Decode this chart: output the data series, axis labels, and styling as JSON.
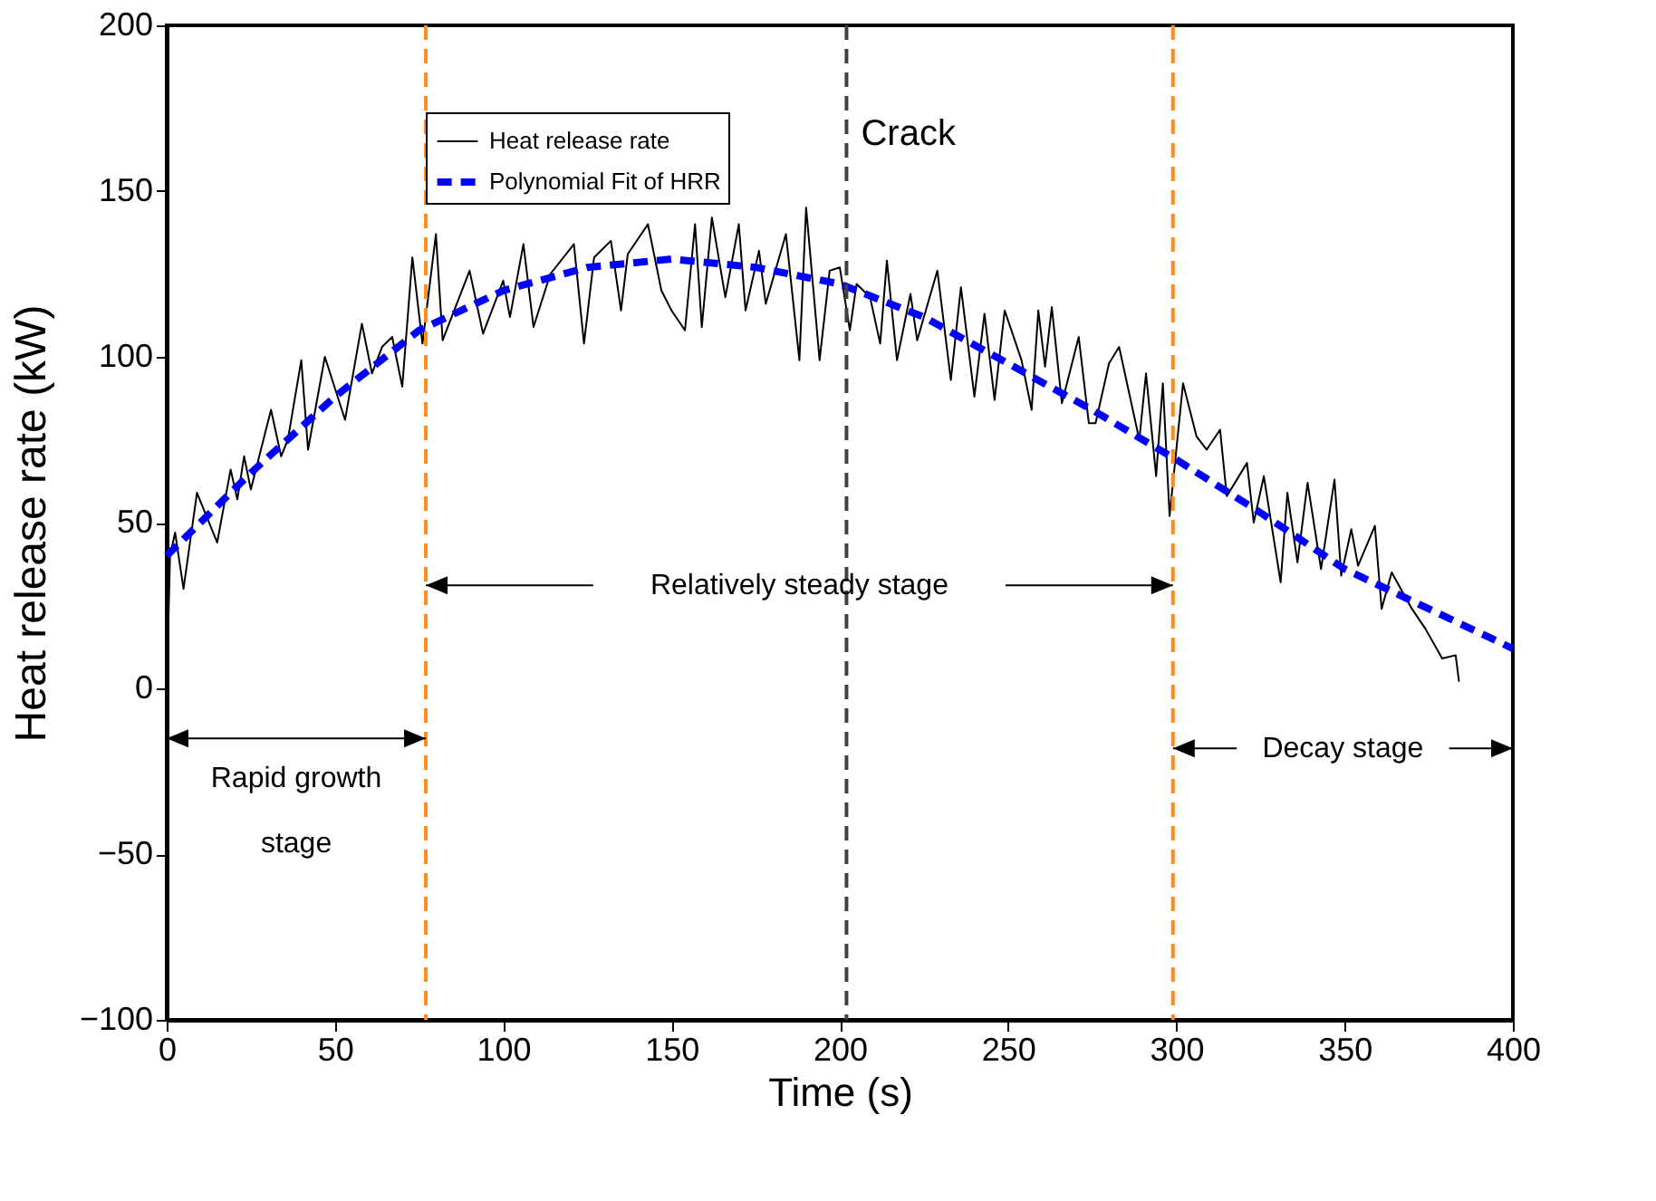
{
  "chart_data": {
    "type": "line",
    "xlabel": "Time (s)",
    "ylabel": "Heat release rate (kW)",
    "xlim": [
      0,
      400
    ],
    "xticks": [
      0,
      50,
      100,
      150,
      200,
      250,
      300,
      350,
      400
    ],
    "ylim": [
      -100,
      200
    ],
    "yticks": [
      -100,
      -50,
      0,
      50,
      100,
      150,
      200
    ],
    "grid": false,
    "legend": "top left",
    "marker": "none",
    "series": [
      {
        "name": "Heat release rate",
        "color": "#000000",
        "line_style": "solid",
        "x": [
          0,
          1,
          2.5,
          5,
          9,
          15,
          19,
          21,
          23,
          25,
          31,
          34,
          36,
          40,
          42,
          47,
          53,
          58,
          61,
          64,
          67,
          70,
          73,
          76,
          80,
          82,
          90,
          94,
          100,
          102,
          106,
          109,
          114,
          121,
          124,
          127,
          130,
          132,
          135,
          137,
          143,
          147,
          150,
          154,
          157,
          159,
          162,
          166,
          170,
          172,
          176,
          178,
          184,
          188,
          190,
          194,
          197,
          200,
          203,
          205,
          209,
          212,
          214,
          217,
          221,
          223,
          229,
          233,
          236,
          240,
          243,
          246,
          249,
          254,
          257,
          259,
          261,
          263,
          266,
          271,
          274,
          276,
          280,
          283,
          289,
          291,
          294,
          296,
          298,
          302,
          306,
          309,
          313,
          315,
          321,
          323,
          326,
          331,
          333,
          336,
          339,
          343,
          347,
          349,
          352,
          354,
          359,
          361,
          364,
          370,
          374,
          379,
          383,
          384
        ],
        "values": [
          0,
          40,
          47,
          30,
          59,
          44,
          66,
          57,
          70,
          60,
          84,
          70,
          75,
          99,
          72,
          100,
          81,
          110,
          95,
          103,
          106,
          91,
          130,
          104,
          137,
          105,
          126,
          107,
          123,
          112,
          134,
          109,
          125,
          134,
          104,
          130,
          133,
          135,
          114,
          131,
          140,
          120,
          114,
          108,
          140,
          109,
          142,
          118,
          140,
          114,
          132,
          116,
          137,
          99,
          145,
          99,
          126,
          127,
          108,
          122,
          118,
          104,
          129,
          99,
          119,
          105,
          126,
          93,
          121,
          88,
          113,
          87,
          114,
          99,
          84,
          114,
          97,
          115,
          86,
          106,
          80,
          80,
          98,
          103,
          75,
          95,
          64,
          92,
          52,
          92,
          76,
          72,
          78,
          58,
          68,
          50,
          64,
          32,
          59,
          38,
          62,
          36,
          63,
          34,
          48,
          37,
          49,
          24,
          35,
          24,
          18,
          9,
          10,
          2
        ]
      },
      {
        "name": "Polynomial Fit of HRR",
        "color": "#0000ff",
        "line_style": "dashed",
        "x": [
          0,
          25,
          50,
          75,
          100,
          125,
          150,
          175,
          200,
          225,
          250,
          275,
          300,
          325,
          350,
          375,
          400
        ],
        "values": [
          40,
          65,
          88,
          108,
          120,
          127,
          129.5,
          127,
          122,
          112,
          98,
          84,
          69,
          53,
          36,
          24,
          12
        ]
      }
    ],
    "ref_lines": [
      {
        "axis": "x",
        "value": 77,
        "color": "#ff8c1a",
        "line_style": "dashed"
      },
      {
        "axis": "x",
        "value": 202,
        "color": "#404040",
        "line_style": "dashed",
        "label": "Crack"
      },
      {
        "axis": "x",
        "value": 299,
        "color": "#ff8c1a",
        "line_style": "dashed"
      }
    ],
    "annotations": [
      "Rapid growth stage",
      "Relatively steady stage",
      "Decay stage"
    ]
  }
}
